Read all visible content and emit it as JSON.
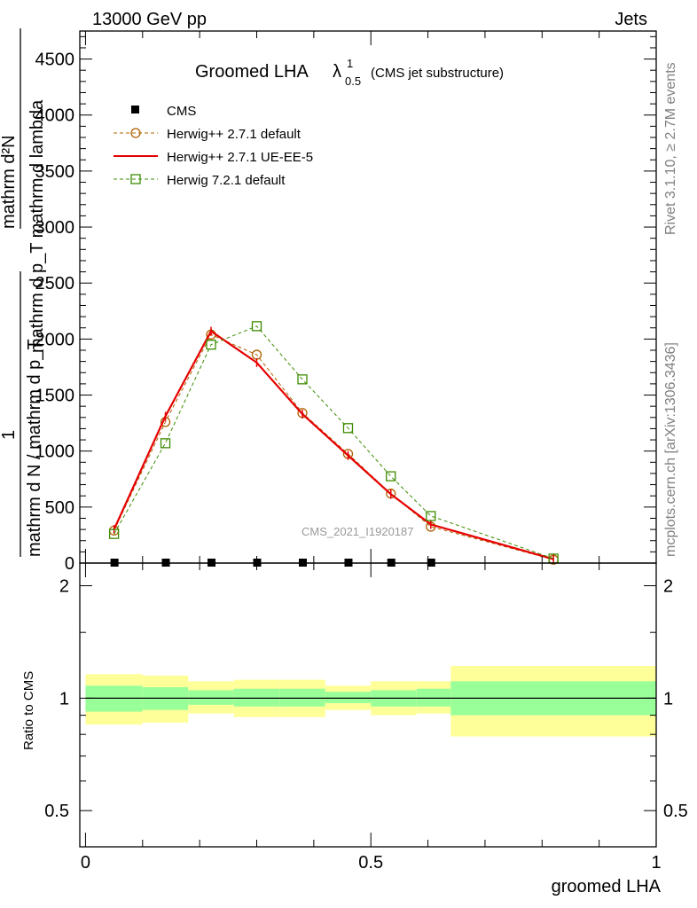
{
  "header": {
    "left": "13000 GeV pp",
    "right": "Jets",
    "side_top": "Rivet 3.1.10, ≥ 2.7M events",
    "side_bottom": "mcplots.cern.ch [arXiv:1306.3436]",
    "watermark": "CMS_2021_I1920187"
  },
  "chart_data": [
    {
      "type": "line",
      "title_main": "Groomed LHA",
      "title_lambda": "λ",
      "title_sup": "1",
      "title_sub": "0.5",
      "title_suffix": "(CMS jet substructure)",
      "ylabel_numerator": "mathrm d²N",
      "ylabel_denominator": "mathrm d p_T mathrm d lambda",
      "ylabel_one": "1",
      "ylabel_left": "mathrm d N / mathrm d p_T",
      "xlim": [
        -0.01,
        1.0
      ],
      "ylim": [
        0,
        4750
      ],
      "yticks": [
        0,
        500,
        1000,
        1500,
        2000,
        2500,
        3000,
        3500,
        4000,
        4500
      ],
      "yticklabels": [
        "0",
        "500",
        "1000",
        "1500",
        "2000",
        "2500",
        "3000",
        "3500",
        "4000",
        "4500"
      ],
      "legend": [
        {
          "label": "CMS",
          "style": "square-marker",
          "color": "#000000"
        },
        {
          "label": "Herwig++ 2.7.1 default",
          "style": "dashed-circle",
          "color": "#b06000"
        },
        {
          "label": "Herwig++ 2.7.1 UE-EE-5",
          "style": "solid",
          "color": "#e60000"
        },
        {
          "label": "Herwig 7.2.1 default",
          "style": "dashed-square",
          "color": "#3c8c00"
        }
      ],
      "cms_x": [
        0.05,
        0.14,
        0.22,
        0.3,
        0.38,
        0.46,
        0.535,
        0.605
      ],
      "cms_y": [
        0,
        0,
        0,
        0,
        0,
        0,
        0,
        0
      ],
      "series": [
        {
          "name": "Herwig++ 2.7.1 default",
          "color": "#b06000",
          "x": [
            0.05,
            0.14,
            0.22,
            0.3,
            0.38,
            0.46,
            0.535,
            0.605,
            0.82
          ],
          "y": [
            290,
            1260,
            2040,
            1860,
            1340,
            975,
            620,
            325,
            30
          ]
        },
        {
          "name": "Herwig++ 2.7.1 UE-EE-5",
          "color": "#e60000",
          "x": [
            0.05,
            0.14,
            0.22,
            0.3,
            0.38,
            0.46,
            0.535,
            0.605,
            0.82
          ],
          "y": [
            300,
            1310,
            2070,
            1790,
            1330,
            960,
            615,
            345,
            35
          ]
        },
        {
          "name": "Herwig 7.2.1 default",
          "color": "#3c8c00",
          "x": [
            0.05,
            0.14,
            0.22,
            0.3,
            0.38,
            0.46,
            0.535,
            0.605,
            0.82
          ],
          "y": [
            260,
            1070,
            1950,
            2115,
            1640,
            1205,
            775,
            420,
            40
          ]
        }
      ]
    },
    {
      "type": "area",
      "ylabel": "Ratio to CMS",
      "xlabel": "groomed LHA",
      "xlim": [
        -0.01,
        1.0
      ],
      "ylim": [
        0.4,
        2.3
      ],
      "log_y": true,
      "xticks": [
        0,
        0.5,
        1
      ],
      "xticklabels": [
        "0",
        "0.5",
        "1"
      ],
      "yticks": [
        0.5,
        1,
        2
      ],
      "yticklabels": [
        "0.5",
        "1",
        "2"
      ],
      "bins": [
        [
          0.0,
          0.1
        ],
        [
          0.1,
          0.18
        ],
        [
          0.18,
          0.26
        ],
        [
          0.26,
          0.34
        ],
        [
          0.34,
          0.42
        ],
        [
          0.42,
          0.5
        ],
        [
          0.5,
          0.58
        ],
        [
          0.58,
          0.64
        ],
        [
          0.64,
          1.0
        ]
      ],
      "green_band": [
        [
          0.92,
          1.08
        ],
        [
          0.93,
          1.07
        ],
        [
          0.96,
          1.05
        ],
        [
          0.95,
          1.06
        ],
        [
          0.95,
          1.06
        ],
        [
          0.97,
          1.04
        ],
        [
          0.95,
          1.05
        ],
        [
          0.95,
          1.06
        ],
        [
          0.9,
          1.11
        ]
      ],
      "yellow_band": [
        [
          0.85,
          1.16
        ],
        [
          0.86,
          1.15
        ],
        [
          0.91,
          1.11
        ],
        [
          0.89,
          1.12
        ],
        [
          0.89,
          1.12
        ],
        [
          0.93,
          1.08
        ],
        [
          0.9,
          1.11
        ],
        [
          0.91,
          1.11
        ],
        [
          0.79,
          1.22
        ]
      ],
      "band_colors": {
        "green": "#99ff99",
        "yellow": "#ffff99"
      }
    }
  ]
}
